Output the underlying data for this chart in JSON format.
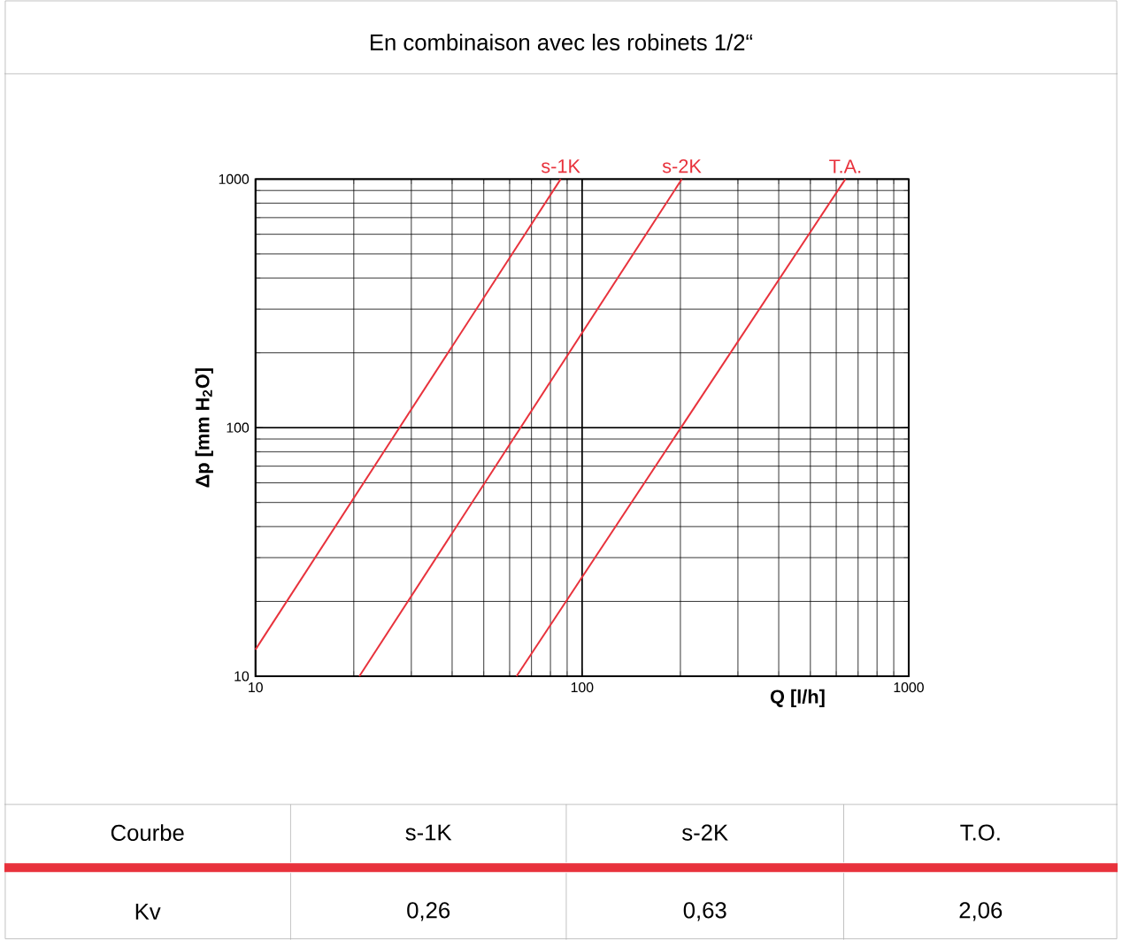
{
  "chart_data": {
    "type": "line",
    "title": "En combinaison avec les robinets 1/2“",
    "xlabel": "Q [l/h]",
    "ylabel": "Δp [mm H$_{2}$O]",
    "log": "xy",
    "grid": true,
    "legend": false,
    "marker": "none",
    "line_style": "solid",
    "xlim": [
      10,
      1000
    ],
    "ylim": [
      10,
      1000
    ],
    "xticks": [
      10,
      100,
      1000
    ],
    "yticks": [
      10,
      100,
      1000
    ],
    "series": [
      {
        "name": "s-1K",
        "color": "#e8323c",
        "x": [
          10,
          86
        ],
        "values": [
          12.8,
          1000
        ]
      },
      {
        "name": "s-2K",
        "color": "#e8323c",
        "x": [
          20.8,
          202
        ],
        "values": [
          10,
          1000
        ]
      },
      {
        "name": "T.A.",
        "color": "#e8323c",
        "x": [
          63,
          640
        ],
        "values": [
          10,
          1000
        ]
      }
    ],
    "annotations": [
      "Courbe",
      "s-1K",
      "s-2K",
      "T.O.",
      "Kv",
      "0,26",
      "0,63",
      "2,06"
    ]
  }
}
